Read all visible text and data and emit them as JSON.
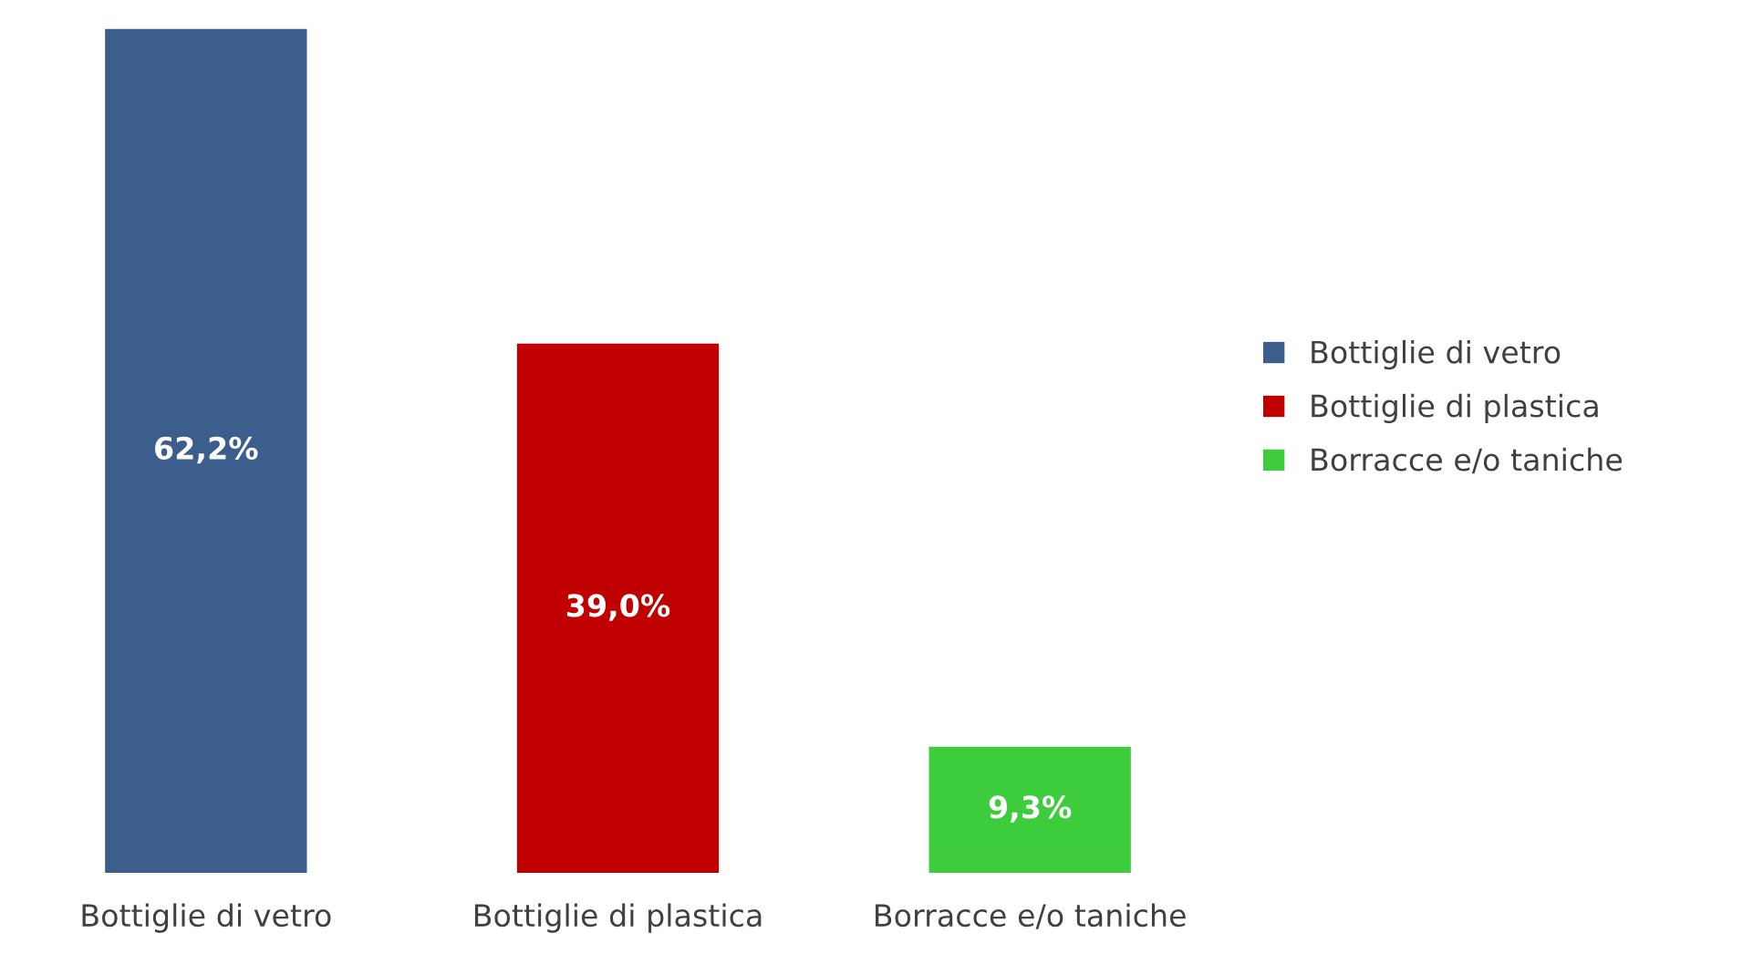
{
  "chart_data": {
    "type": "bar",
    "categories": [
      "Bottiglie di vetro",
      "Bottiglie di plastica",
      "Borracce e/o taniche"
    ],
    "stacked": true,
    "series": [
      {
        "name": "Bottiglie di vetro",
        "color": "#3b5e8c",
        "values": [
          62.2,
          null,
          null
        ],
        "value_labels": [
          "62,2%",
          null,
          null
        ]
      },
      {
        "name": "Bottiglie di plastica",
        "color": "#c00000",
        "values": [
          null,
          39.0,
          null
        ],
        "value_labels": [
          null,
          "39,0%",
          null
        ]
      },
      {
        "name": "Borracce e/o taniche",
        "color": "#3ccc3c",
        "values": [
          null,
          null,
          9.3
        ],
        "value_labels": [
          null,
          null,
          "9,3%"
        ]
      }
    ],
    "legend": "right"
  }
}
